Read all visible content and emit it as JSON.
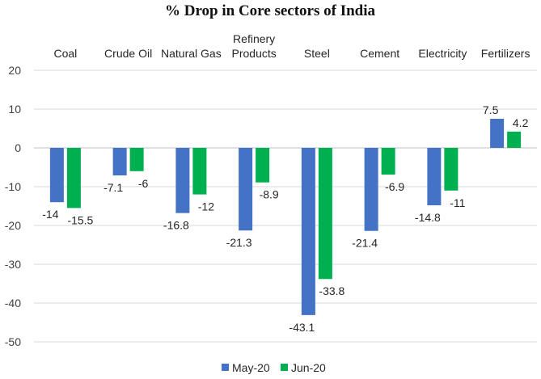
{
  "chart_data": {
    "type": "bar",
    "title": "% Drop in Core sectors of India",
    "categories": [
      "Coal",
      "Crude Oil",
      "Natural Gas",
      "Refinery Products",
      "Steel",
      "Cement",
      "Electricity",
      "Fertilizers"
    ],
    "series": [
      {
        "name": "May-20",
        "color": "#4472c4",
        "values": [
          -14,
          -7.1,
          -16.8,
          -21.3,
          -43.1,
          -21.4,
          -14.8,
          7.5
        ],
        "labels": [
          "-14",
          "-7.1",
          "-16.8",
          "-21.3",
          "-43.1",
          "-21.4",
          "-14.8",
          "7.5"
        ]
      },
      {
        "name": "Jun-20",
        "color": "#00b050",
        "values": [
          -15.5,
          -6,
          -12,
          -8.9,
          -33.8,
          -6.9,
          -11,
          4.2
        ],
        "labels": [
          "-15.5",
          "-6",
          "-12",
          "-8.9",
          "-33.8",
          "-6.9",
          "-11",
          "4.2"
        ]
      }
    ],
    "ylim": [
      -50,
      20
    ],
    "yticks": [
      20,
      10,
      0,
      -10,
      -20,
      -30,
      -40,
      -50
    ],
    "grid": true,
    "legend": "bottom",
    "xlabel": "",
    "ylabel": ""
  }
}
